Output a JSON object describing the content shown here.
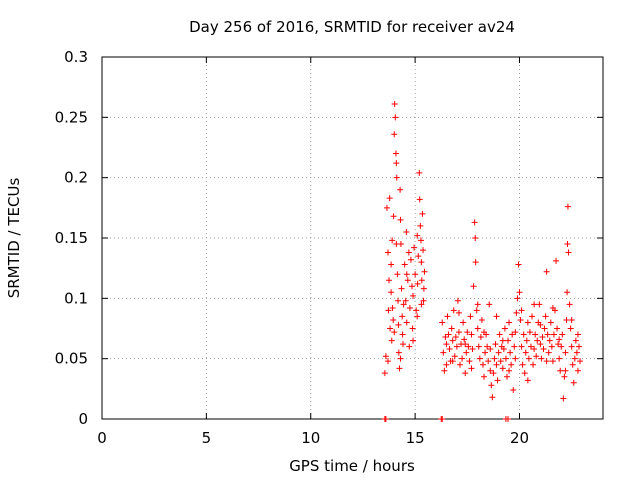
{
  "chart_data": {
    "type": "scatter",
    "title": "Day 256 of 2016, SRMTID for receiver av24",
    "xlabel": "GPS time / hours",
    "ylabel": "SRMTID / TECUs",
    "xlim": [
      0,
      24
    ],
    "ylim": [
      0,
      0.3
    ],
    "grid": true,
    "xticks": [
      0,
      5,
      10,
      15,
      20
    ],
    "xtick_labels": [
      "0",
      "5",
      "10",
      "15",
      "20"
    ],
    "yticks": [
      0,
      0.05,
      0.1,
      0.15,
      0.2,
      0.25,
      0.3
    ],
    "ytick_labels": [
      "0",
      "0.05",
      "0.1",
      "0.15",
      "0.2",
      "0.25",
      "0.3"
    ],
    "series": [
      {
        "name": "SRMTID",
        "marker": "+",
        "color": "#ff0000",
        "points": [
          [
            13.55,
            0.0
          ],
          [
            13.6,
            0.0
          ],
          [
            16.25,
            0.0
          ],
          [
            16.3,
            0.0
          ],
          [
            19.35,
            0.0
          ],
          [
            19.45,
            0.0
          ],
          [
            13.55,
            0.038
          ],
          [
            13.6,
            0.052
          ],
          [
            13.65,
            0.175
          ],
          [
            13.7,
            0.138
          ],
          [
            13.72,
            0.09
          ],
          [
            13.75,
            0.115
          ],
          [
            13.78,
            0.183
          ],
          [
            13.8,
            0.075
          ],
          [
            13.85,
            0.128
          ],
          [
            13.88,
            0.065
          ],
          [
            13.9,
            0.148
          ],
          [
            13.92,
            0.092
          ],
          [
            13.95,
            0.082
          ],
          [
            13.97,
            0.168
          ],
          [
            14.0,
            0.236
          ],
          [
            14.02,
            0.261
          ],
          [
            14.05,
            0.25
          ],
          [
            14.08,
            0.22
          ],
          [
            14.1,
            0.212
          ],
          [
            14.12,
            0.2
          ],
          [
            14.15,
            0.12
          ],
          [
            14.18,
            0.098
          ],
          [
            14.2,
            0.078
          ],
          [
            14.22,
            0.055
          ],
          [
            14.25,
            0.042
          ],
          [
            14.28,
            0.19
          ],
          [
            14.3,
            0.165
          ],
          [
            14.32,
            0.145
          ],
          [
            14.35,
            0.108
          ],
          [
            14.38,
            0.085
          ],
          [
            14.4,
            0.07
          ],
          [
            14.42,
            0.062
          ],
          [
            14.45,
            0.095
          ],
          [
            14.5,
            0.128
          ],
          [
            14.55,
            0.098
          ],
          [
            14.58,
            0.155
          ],
          [
            14.6,
            0.08
          ],
          [
            14.65,
            0.115
          ],
          [
            14.7,
            0.138
          ],
          [
            14.72,
            0.06
          ],
          [
            14.75,
            0.092
          ],
          [
            14.8,
            0.132
          ],
          [
            14.85,
            0.11
          ],
          [
            14.88,
            0.075
          ],
          [
            14.9,
            0.102
          ],
          [
            14.95,
            0.142
          ],
          [
            15.0,
            0.12
          ],
          [
            15.05,
            0.09
          ],
          [
            15.1,
            0.152
          ],
          [
            15.12,
            0.112
          ],
          [
            15.15,
            0.135
          ],
          [
            15.2,
            0.204
          ],
          [
            15.22,
            0.182
          ],
          [
            15.25,
            0.16
          ],
          [
            15.28,
            0.148
          ],
          [
            15.3,
            0.13
          ],
          [
            15.32,
            0.115
          ],
          [
            15.35,
            0.17
          ],
          [
            15.38,
            0.14
          ],
          [
            15.4,
            0.098
          ],
          [
            15.42,
            0.108
          ],
          [
            15.45,
            0.122
          ],
          [
            13.7,
            0.048
          ],
          [
            13.85,
            0.105
          ],
          [
            14.0,
            0.072
          ],
          [
            14.1,
            0.145
          ],
          [
            14.3,
            0.05
          ],
          [
            14.6,
            0.12
          ],
          [
            14.9,
            0.065
          ],
          [
            15.1,
            0.085
          ],
          [
            15.3,
            0.095
          ],
          [
            16.3,
            0.08
          ],
          [
            16.35,
            0.055
          ],
          [
            16.4,
            0.04
          ],
          [
            16.45,
            0.068
          ],
          [
            16.5,
            0.062
          ],
          [
            16.55,
            0.085
          ],
          [
            16.6,
            0.07
          ],
          [
            16.65,
            0.058
          ],
          [
            16.7,
            0.048
          ],
          [
            16.75,
            0.075
          ],
          [
            16.8,
            0.065
          ],
          [
            16.85,
            0.09
          ],
          [
            16.9,
            0.052
          ],
          [
            16.95,
            0.068
          ],
          [
            17.0,
            0.06
          ],
          [
            17.05,
            0.098
          ],
          [
            17.1,
            0.072
          ],
          [
            17.15,
            0.045
          ],
          [
            17.2,
            0.062
          ],
          [
            17.25,
            0.05
          ],
          [
            17.3,
            0.08
          ],
          [
            17.35,
            0.066
          ],
          [
            17.4,
            0.038
          ],
          [
            17.45,
            0.055
          ],
          [
            17.5,
            0.072
          ],
          [
            17.55,
            0.06
          ],
          [
            17.6,
            0.048
          ],
          [
            17.65,
            0.085
          ],
          [
            17.7,
            0.07
          ],
          [
            17.75,
            0.058
          ],
          [
            17.8,
            0.11
          ],
          [
            17.85,
            0.163
          ],
          [
            17.88,
            0.15
          ],
          [
            17.9,
            0.13
          ],
          [
            17.95,
            0.09
          ],
          [
            18.0,
            0.075
          ],
          [
            18.05,
            0.06
          ],
          [
            18.1,
            0.05
          ],
          [
            18.15,
            0.068
          ],
          [
            18.2,
            0.082
          ],
          [
            18.25,
            0.045
          ],
          [
            18.3,
            0.035
          ],
          [
            18.35,
            0.055
          ],
          [
            18.4,
            0.07
          ],
          [
            18.45,
            0.06
          ],
          [
            18.5,
            0.048
          ],
          [
            18.55,
            0.095
          ],
          [
            18.6,
            0.04
          ],
          [
            18.65,
            0.028
          ],
          [
            18.7,
            0.018
          ],
          [
            18.75,
            0.038
          ],
          [
            18.8,
            0.05
          ],
          [
            18.85,
            0.062
          ],
          [
            18.9,
            0.045
          ],
          [
            18.95,
            0.032
          ],
          [
            19.0,
            0.055
          ],
          [
            19.05,
            0.07
          ],
          [
            19.1,
            0.048
          ],
          [
            19.15,
            0.06
          ],
          [
            19.2,
            0.042
          ],
          [
            19.25,
            0.058
          ],
          [
            19.3,
            0.075
          ],
          [
            19.35,
            0.05
          ],
          [
            19.4,
            0.035
          ],
          [
            19.45,
            0.065
          ],
          [
            19.5,
            0.08
          ],
          [
            19.55,
            0.055
          ],
          [
            19.6,
            0.045
          ],
          [
            19.65,
            0.07
          ],
          [
            19.7,
            0.024
          ],
          [
            19.75,
            0.06
          ],
          [
            19.8,
            0.05
          ],
          [
            19.85,
            0.088
          ],
          [
            19.9,
            0.1
          ],
          [
            19.95,
            0.128
          ],
          [
            20.0,
            0.105
          ],
          [
            20.05,
            0.082
          ],
          [
            20.1,
            0.06
          ],
          [
            20.15,
            0.045
          ],
          [
            20.2,
            0.07
          ],
          [
            20.25,
            0.038
          ],
          [
            20.3,
            0.055
          ],
          [
            20.35,
            0.065
          ],
          [
            20.4,
            0.08
          ],
          [
            20.45,
            0.05
          ],
          [
            20.5,
            0.072
          ],
          [
            20.55,
            0.06
          ],
          [
            20.6,
            0.085
          ],
          [
            20.65,
            0.045
          ],
          [
            20.7,
            0.058
          ],
          [
            20.75,
            0.07
          ],
          [
            20.8,
            0.052
          ],
          [
            20.85,
            0.065
          ],
          [
            20.9,
            0.08
          ],
          [
            20.95,
            0.095
          ],
          [
            21.0,
            0.062
          ],
          [
            21.05,
            0.05
          ],
          [
            21.1,
            0.068
          ],
          [
            21.15,
            0.058
          ],
          [
            21.2,
            0.075
          ],
          [
            21.25,
            0.085
          ],
          [
            21.3,
            0.122
          ],
          [
            21.35,
            0.07
          ],
          [
            21.4,
            0.055
          ],
          [
            21.45,
            0.065
          ],
          [
            21.5,
            0.08
          ],
          [
            21.55,
            0.06
          ],
          [
            21.6,
            0.048
          ],
          [
            21.65,
            0.07
          ],
          [
            21.7,
            0.09
          ],
          [
            21.75,
            0.131
          ],
          [
            21.8,
            0.075
          ],
          [
            21.85,
            0.062
          ],
          [
            21.9,
            0.05
          ],
          [
            21.95,
            0.04
          ],
          [
            22.0,
            0.06
          ],
          [
            22.05,
            0.07
          ],
          [
            22.1,
            0.017
          ],
          [
            22.15,
            0.035
          ],
          [
            22.2,
            0.055
          ],
          [
            22.25,
            0.082
          ],
          [
            22.28,
            0.105
          ],
          [
            22.3,
            0.145
          ],
          [
            22.32,
            0.176
          ],
          [
            22.35,
            0.138
          ],
          [
            22.4,
            0.095
          ],
          [
            22.45,
            0.075
          ],
          [
            22.5,
            0.06
          ],
          [
            22.55,
            0.045
          ],
          [
            22.6,
            0.03
          ],
          [
            22.65,
            0.05
          ],
          [
            22.7,
            0.065
          ],
          [
            22.75,
            0.055
          ],
          [
            22.8,
            0.04
          ],
          [
            22.85,
            0.06
          ],
          [
            22.9,
            0.048
          ],
          [
            16.5,
            0.045
          ],
          [
            16.8,
            0.048
          ],
          [
            17.1,
            0.088
          ],
          [
            17.4,
            0.062
          ],
          [
            17.7,
            0.042
          ],
          [
            18.0,
            0.095
          ],
          [
            18.3,
            0.072
          ],
          [
            18.6,
            0.058
          ],
          [
            18.9,
            0.085
          ],
          [
            19.2,
            0.065
          ],
          [
            19.5,
            0.04
          ],
          [
            19.8,
            0.072
          ],
          [
            20.1,
            0.09
          ],
          [
            20.4,
            0.032
          ],
          [
            20.7,
            0.095
          ],
          [
            21.0,
            0.078
          ],
          [
            21.3,
            0.048
          ],
          [
            21.6,
            0.092
          ],
          [
            21.9,
            0.066
          ],
          [
            22.2,
            0.04
          ],
          [
            22.5,
            0.082
          ],
          [
            22.8,
            0.07
          ]
        ]
      }
    ]
  }
}
